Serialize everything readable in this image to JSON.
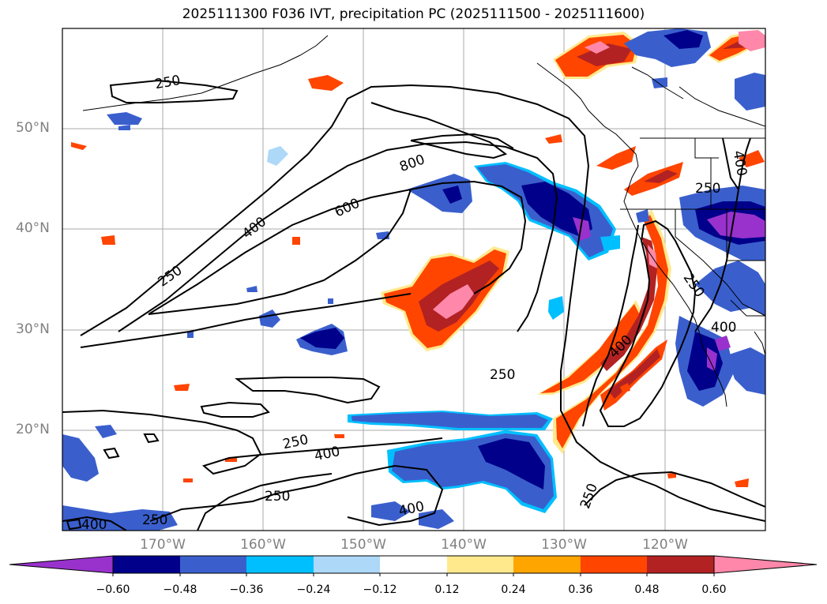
{
  "title": "2025111300 F036 IVT, precipitation PC (2025111500 - 2025111600)",
  "map": {
    "lat_labels": [
      "50°N",
      "40°N",
      "30°N",
      "20°N"
    ],
    "lon_labels": [
      "170°W",
      "160°W",
      "150°W",
      "140°W",
      "130°W",
      "120°W"
    ],
    "contour_labels": [
      "250",
      "400",
      "600",
      "800",
      "250",
      "400",
      "250",
      "250",
      "400",
      "250",
      "400",
      "250",
      "400",
      "250",
      "250",
      "400",
      "400",
      "250"
    ]
  },
  "colorbar": {
    "ticks": [
      "−0.60",
      "−0.48",
      "−0.36",
      "−0.24",
      "−0.12",
      "0.12",
      "0.24",
      "0.36",
      "0.48",
      "0.60"
    ],
    "colors": [
      "#9932cc",
      "#00008b",
      "#3a5fcd",
      "#00bfff",
      "#add8f8",
      "#ffffff",
      "#ffe98c",
      "#ffa500",
      "#ff4500",
      "#b22222",
      "#ff88aa"
    ]
  },
  "chart_data": {
    "type": "heatmap",
    "title": "2025111300 F036 IVT, precipitation PC (2025111500 - 2025111600)",
    "x_range": [
      -180,
      -110
    ],
    "y_range": [
      10,
      60
    ],
    "x_ticks": [
      "170°W",
      "160°W",
      "150°W",
      "140°W",
      "130°W",
      "120°W"
    ],
    "y_ticks": [
      "50°N",
      "40°N",
      "30°N",
      "20°N"
    ],
    "ivt_contour_levels": [
      250,
      400,
      600,
      800
    ],
    "colorbar_levels": [
      -0.6,
      -0.48,
      -0.36,
      -0.24,
      -0.12,
      0.12,
      0.24,
      0.36,
      0.48,
      0.6
    ]
  }
}
